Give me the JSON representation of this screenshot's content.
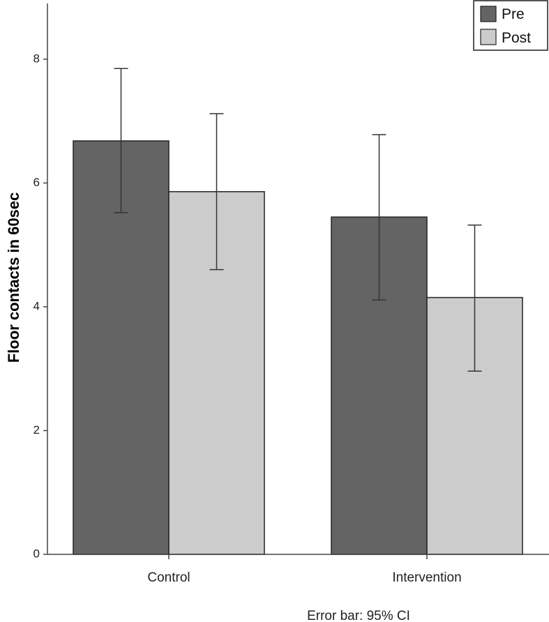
{
  "chart_data": {
    "type": "bar",
    "categories": [
      "Control",
      "Intervention"
    ],
    "series": [
      {
        "name": "Pre",
        "color": "#646464",
        "values": [
          6.68,
          5.45
        ],
        "ci_lower": [
          5.52,
          4.11
        ],
        "ci_upper": [
          7.85,
          6.78
        ]
      },
      {
        "name": "Post",
        "color": "#cccccc",
        "values": [
          5.86,
          4.15
        ],
        "ci_lower": [
          4.6,
          2.96
        ],
        "ci_upper": [
          7.12,
          5.32
        ]
      }
    ],
    "ylabel": "Floor contacts in 60sec",
    "xlabel": "",
    "ylim": [
      0,
      8.9
    ],
    "yticks": [
      0,
      2,
      4,
      6,
      8
    ],
    "legend_position": "top-right",
    "grid": false,
    "footnote": "Error bar: 95% CI"
  }
}
